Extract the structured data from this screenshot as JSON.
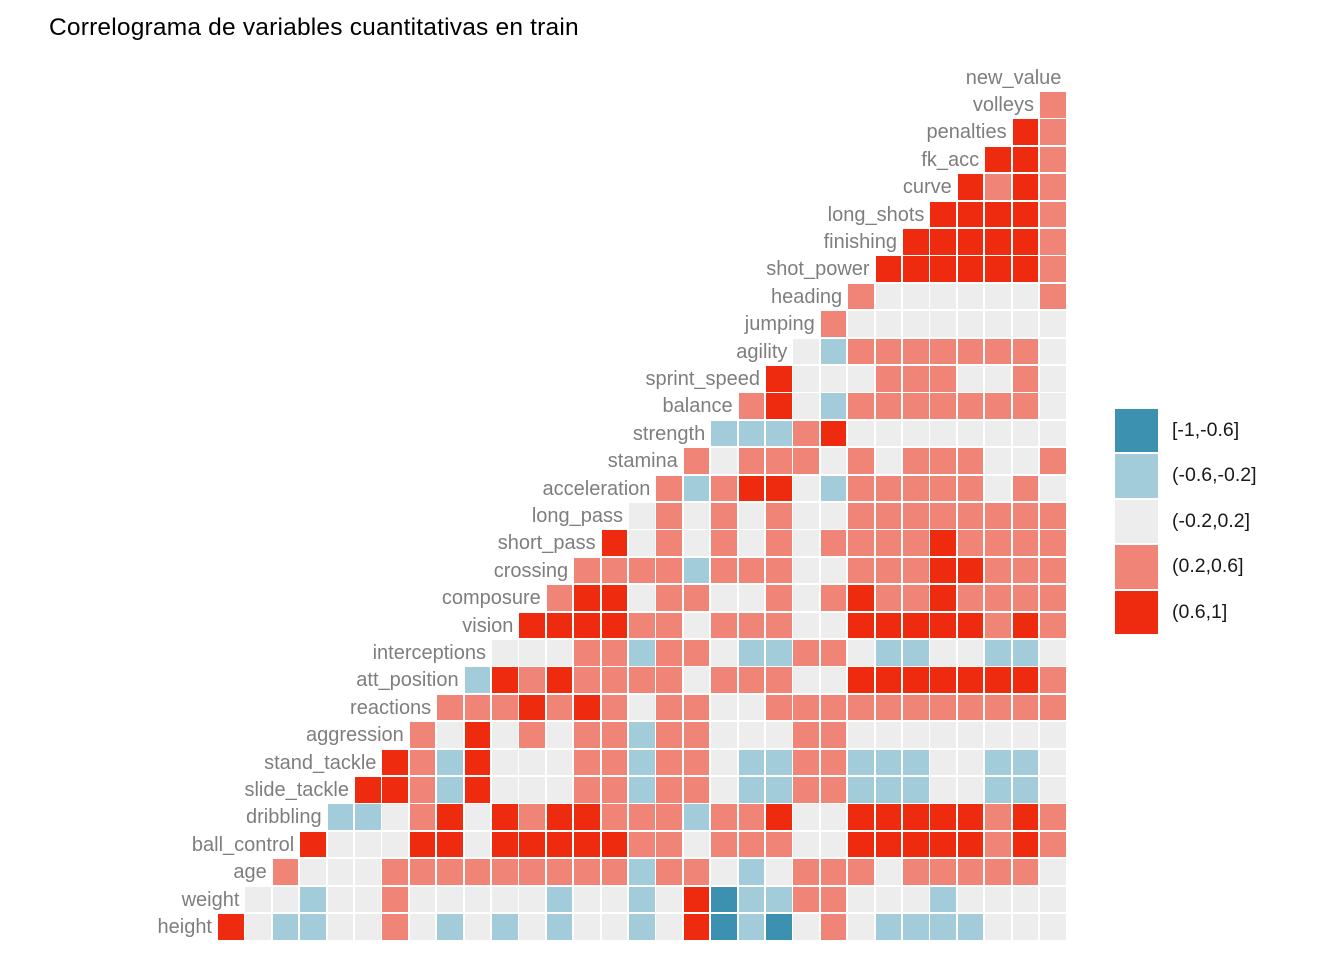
{
  "title": "Correlograma de variables cuantitativas en train",
  "chart_data": {
    "type": "heatmap",
    "subtype": "lower-triangle-correlogram",
    "title": "Correlograma de variables cuantitativas en train",
    "grid": false,
    "legend_position": "right",
    "legend": [
      {
        "code": "T",
        "label": "[-1,-0.6]",
        "color": "#3D91B0"
      },
      {
        "code": "b",
        "label": "(-0.6,-0.2]",
        "color": "#A3CCDB"
      },
      {
        "code": "0",
        "label": "(-0.2,0.2]",
        "color": "#EDEDED"
      },
      {
        "code": "s",
        "label": "(0.2,0.6]",
        "color": "#F08577"
      },
      {
        "code": "R",
        "label": "(0.6,1]",
        "color": "#EE2B0E"
      }
    ],
    "label_color": "#7e7e7e",
    "variables": [
      "new_value",
      "volleys",
      "penalties",
      "fk_acc",
      "curve",
      "long_shots",
      "finishing",
      "shot_power",
      "heading",
      "jumping",
      "agility",
      "sprint_speed",
      "balance",
      "strength",
      "stamina",
      "acceleration",
      "long_pass",
      "short_pass",
      "crossing",
      "composure",
      "vision",
      "interceptions",
      "att_position",
      "reactions",
      "aggression",
      "stand_tackle",
      "slide_tackle",
      "dribbling",
      "ball_control",
      "age",
      "weight",
      "height"
    ],
    "rows": [
      {
        "label": "new_value",
        "cells": []
      },
      {
        "label": "volleys",
        "cells": [
          "s"
        ]
      },
      {
        "label": "penalties",
        "cells": [
          "R",
          "s"
        ]
      },
      {
        "label": "fk_acc",
        "cells": [
          "R",
          "R",
          "s"
        ]
      },
      {
        "label": "curve",
        "cells": [
          "R",
          "s",
          "R",
          "s"
        ]
      },
      {
        "label": "long_shots",
        "cells": [
          "R",
          "R",
          "R",
          "R",
          "s"
        ]
      },
      {
        "label": "finishing",
        "cells": [
          "R",
          "R",
          "R",
          "R",
          "R",
          "s"
        ]
      },
      {
        "label": "shot_power",
        "cells": [
          "R",
          "R",
          "R",
          "R",
          "R",
          "R",
          "s"
        ]
      },
      {
        "label": "heading",
        "cells": [
          "s",
          "0",
          "0",
          "0",
          "0",
          "0",
          "0",
          "s"
        ]
      },
      {
        "label": "jumping",
        "cells": [
          "s",
          "0",
          "0",
          "0",
          "0",
          "0",
          "0",
          "0",
          "0"
        ]
      },
      {
        "label": "agility",
        "cells": [
          "0",
          "b",
          "s",
          "s",
          "s",
          "s",
          "s",
          "s",
          "s",
          "0"
        ]
      },
      {
        "label": "sprint_speed",
        "cells": [
          "R",
          "0",
          "0",
          "0",
          "s",
          "s",
          "s",
          "0",
          "0",
          "s",
          "0"
        ]
      },
      {
        "label": "balance",
        "cells": [
          "s",
          "R",
          "0",
          "b",
          "s",
          "s",
          "s",
          "s",
          "s",
          "s",
          "s",
          "0"
        ]
      },
      {
        "label": "strength",
        "cells": [
          "b",
          "b",
          "b",
          "s",
          "R",
          "0",
          "0",
          "0",
          "0",
          "0",
          "0",
          "0",
          "0"
        ]
      },
      {
        "label": "stamina",
        "cells": [
          "s",
          "0",
          "s",
          "s",
          "s",
          "0",
          "s",
          "0",
          "s",
          "s",
          "s",
          "0",
          "0",
          "s"
        ]
      },
      {
        "label": "acceleration",
        "cells": [
          "s",
          "b",
          "s",
          "R",
          "R",
          "0",
          "b",
          "s",
          "s",
          "s",
          "s",
          "s",
          "0",
          "s",
          "0"
        ]
      },
      {
        "label": "long_pass",
        "cells": [
          "0",
          "s",
          "0",
          "s",
          "0",
          "s",
          "0",
          "0",
          "s",
          "s",
          "s",
          "s",
          "s",
          "s",
          "s",
          "s"
        ]
      },
      {
        "label": "short_pass",
        "cells": [
          "R",
          "0",
          "s",
          "0",
          "s",
          "0",
          "s",
          "0",
          "s",
          "s",
          "s",
          "s",
          "R",
          "s",
          "s",
          "s",
          "s"
        ]
      },
      {
        "label": "crossing",
        "cells": [
          "s",
          "s",
          "s",
          "s",
          "b",
          "s",
          "s",
          "s",
          "0",
          "0",
          "s",
          "s",
          "s",
          "R",
          "R",
          "s",
          "s",
          "s"
        ]
      },
      {
        "label": "composure",
        "cells": [
          "s",
          "R",
          "R",
          "0",
          "s",
          "s",
          "0",
          "0",
          "s",
          "0",
          "s",
          "R",
          "s",
          "s",
          "R",
          "s",
          "s",
          "s",
          "s"
        ]
      },
      {
        "label": "vision",
        "cells": [
          "R",
          "R",
          "R",
          "R",
          "s",
          "s",
          "0",
          "s",
          "s",
          "s",
          "0",
          "0",
          "R",
          "R",
          "R",
          "R",
          "R",
          "s",
          "R",
          "s"
        ]
      },
      {
        "label": "interceptions",
        "cells": [
          "0",
          "0",
          "0",
          "s",
          "s",
          "b",
          "s",
          "s",
          "0",
          "b",
          "b",
          "s",
          "s",
          "0",
          "b",
          "b",
          "0",
          "0",
          "b",
          "b",
          "0"
        ]
      },
      {
        "label": "att_position",
        "cells": [
          "b",
          "R",
          "s",
          "R",
          "s",
          "s",
          "s",
          "s",
          "0",
          "s",
          "s",
          "s",
          "0",
          "0",
          "R",
          "R",
          "R",
          "R",
          "R",
          "R",
          "R",
          "s"
        ]
      },
      {
        "label": "reactions",
        "cells": [
          "s",
          "s",
          "s",
          "R",
          "s",
          "R",
          "s",
          "0",
          "s",
          "s",
          "0",
          "0",
          "s",
          "s",
          "s",
          "s",
          "s",
          "s",
          "s",
          "s",
          "s",
          "s",
          "s"
        ]
      },
      {
        "label": "aggression",
        "cells": [
          "s",
          "0",
          "R",
          "0",
          "s",
          "0",
          "s",
          "s",
          "b",
          "s",
          "s",
          "0",
          "0",
          "0",
          "s",
          "s",
          "0",
          "0",
          "0",
          "0",
          "0",
          "0",
          "0",
          "0"
        ]
      },
      {
        "label": "stand_tackle",
        "cells": [
          "R",
          "s",
          "b",
          "R",
          "0",
          "0",
          "0",
          "s",
          "s",
          "b",
          "s",
          "s",
          "0",
          "b",
          "b",
          "s",
          "s",
          "b",
          "b",
          "b",
          "0",
          "0",
          "b",
          "b",
          "0"
        ]
      },
      {
        "label": "slide_tackle",
        "cells": [
          "R",
          "R",
          "s",
          "b",
          "R",
          "0",
          "0",
          "0",
          "s",
          "s",
          "b",
          "s",
          "s",
          "0",
          "b",
          "b",
          "s",
          "s",
          "b",
          "b",
          "b",
          "0",
          "0",
          "b",
          "b",
          "0"
        ]
      },
      {
        "label": "dribbling",
        "cells": [
          "b",
          "b",
          "0",
          "s",
          "R",
          "0",
          "R",
          "s",
          "R",
          "R",
          "s",
          "s",
          "s",
          "b",
          "s",
          "s",
          "R",
          "0",
          "0",
          "R",
          "R",
          "R",
          "R",
          "R",
          "s",
          "R",
          "s"
        ]
      },
      {
        "label": "ball_control",
        "cells": [
          "R",
          "0",
          "0",
          "0",
          "R",
          "R",
          "0",
          "R",
          "R",
          "R",
          "R",
          "R",
          "s",
          "s",
          "0",
          "s",
          "s",
          "s",
          "0",
          "0",
          "R",
          "R",
          "R",
          "R",
          "R",
          "s",
          "R",
          "s"
        ]
      },
      {
        "label": "age",
        "cells": [
          "s",
          "0",
          "0",
          "0",
          "s",
          "s",
          "s",
          "s",
          "s",
          "s",
          "s",
          "s",
          "s",
          "b",
          "s",
          "s",
          "0",
          "b",
          "0",
          "s",
          "s",
          "s",
          "0",
          "s",
          "s",
          "s",
          "s",
          "s",
          "0"
        ]
      },
      {
        "label": "weight",
        "cells": [
          "0",
          "0",
          "b",
          "0",
          "0",
          "s",
          "0",
          "0",
          "0",
          "0",
          "0",
          "b",
          "0",
          "0",
          "b",
          "0",
          "R",
          "T",
          "b",
          "b",
          "s",
          "s",
          "0",
          "0",
          "0",
          "b",
          "0",
          "0",
          "0",
          "0"
        ]
      },
      {
        "label": "height",
        "cells": [
          "R",
          "0",
          "b",
          "b",
          "0",
          "0",
          "s",
          "0",
          "b",
          "0",
          "b",
          "0",
          "b",
          "0",
          "0",
          "b",
          "0",
          "R",
          "T",
          "b",
          "T",
          "0",
          "s",
          "0",
          "b",
          "b",
          "b",
          "b",
          "0",
          "0",
          "0"
        ]
      }
    ]
  }
}
